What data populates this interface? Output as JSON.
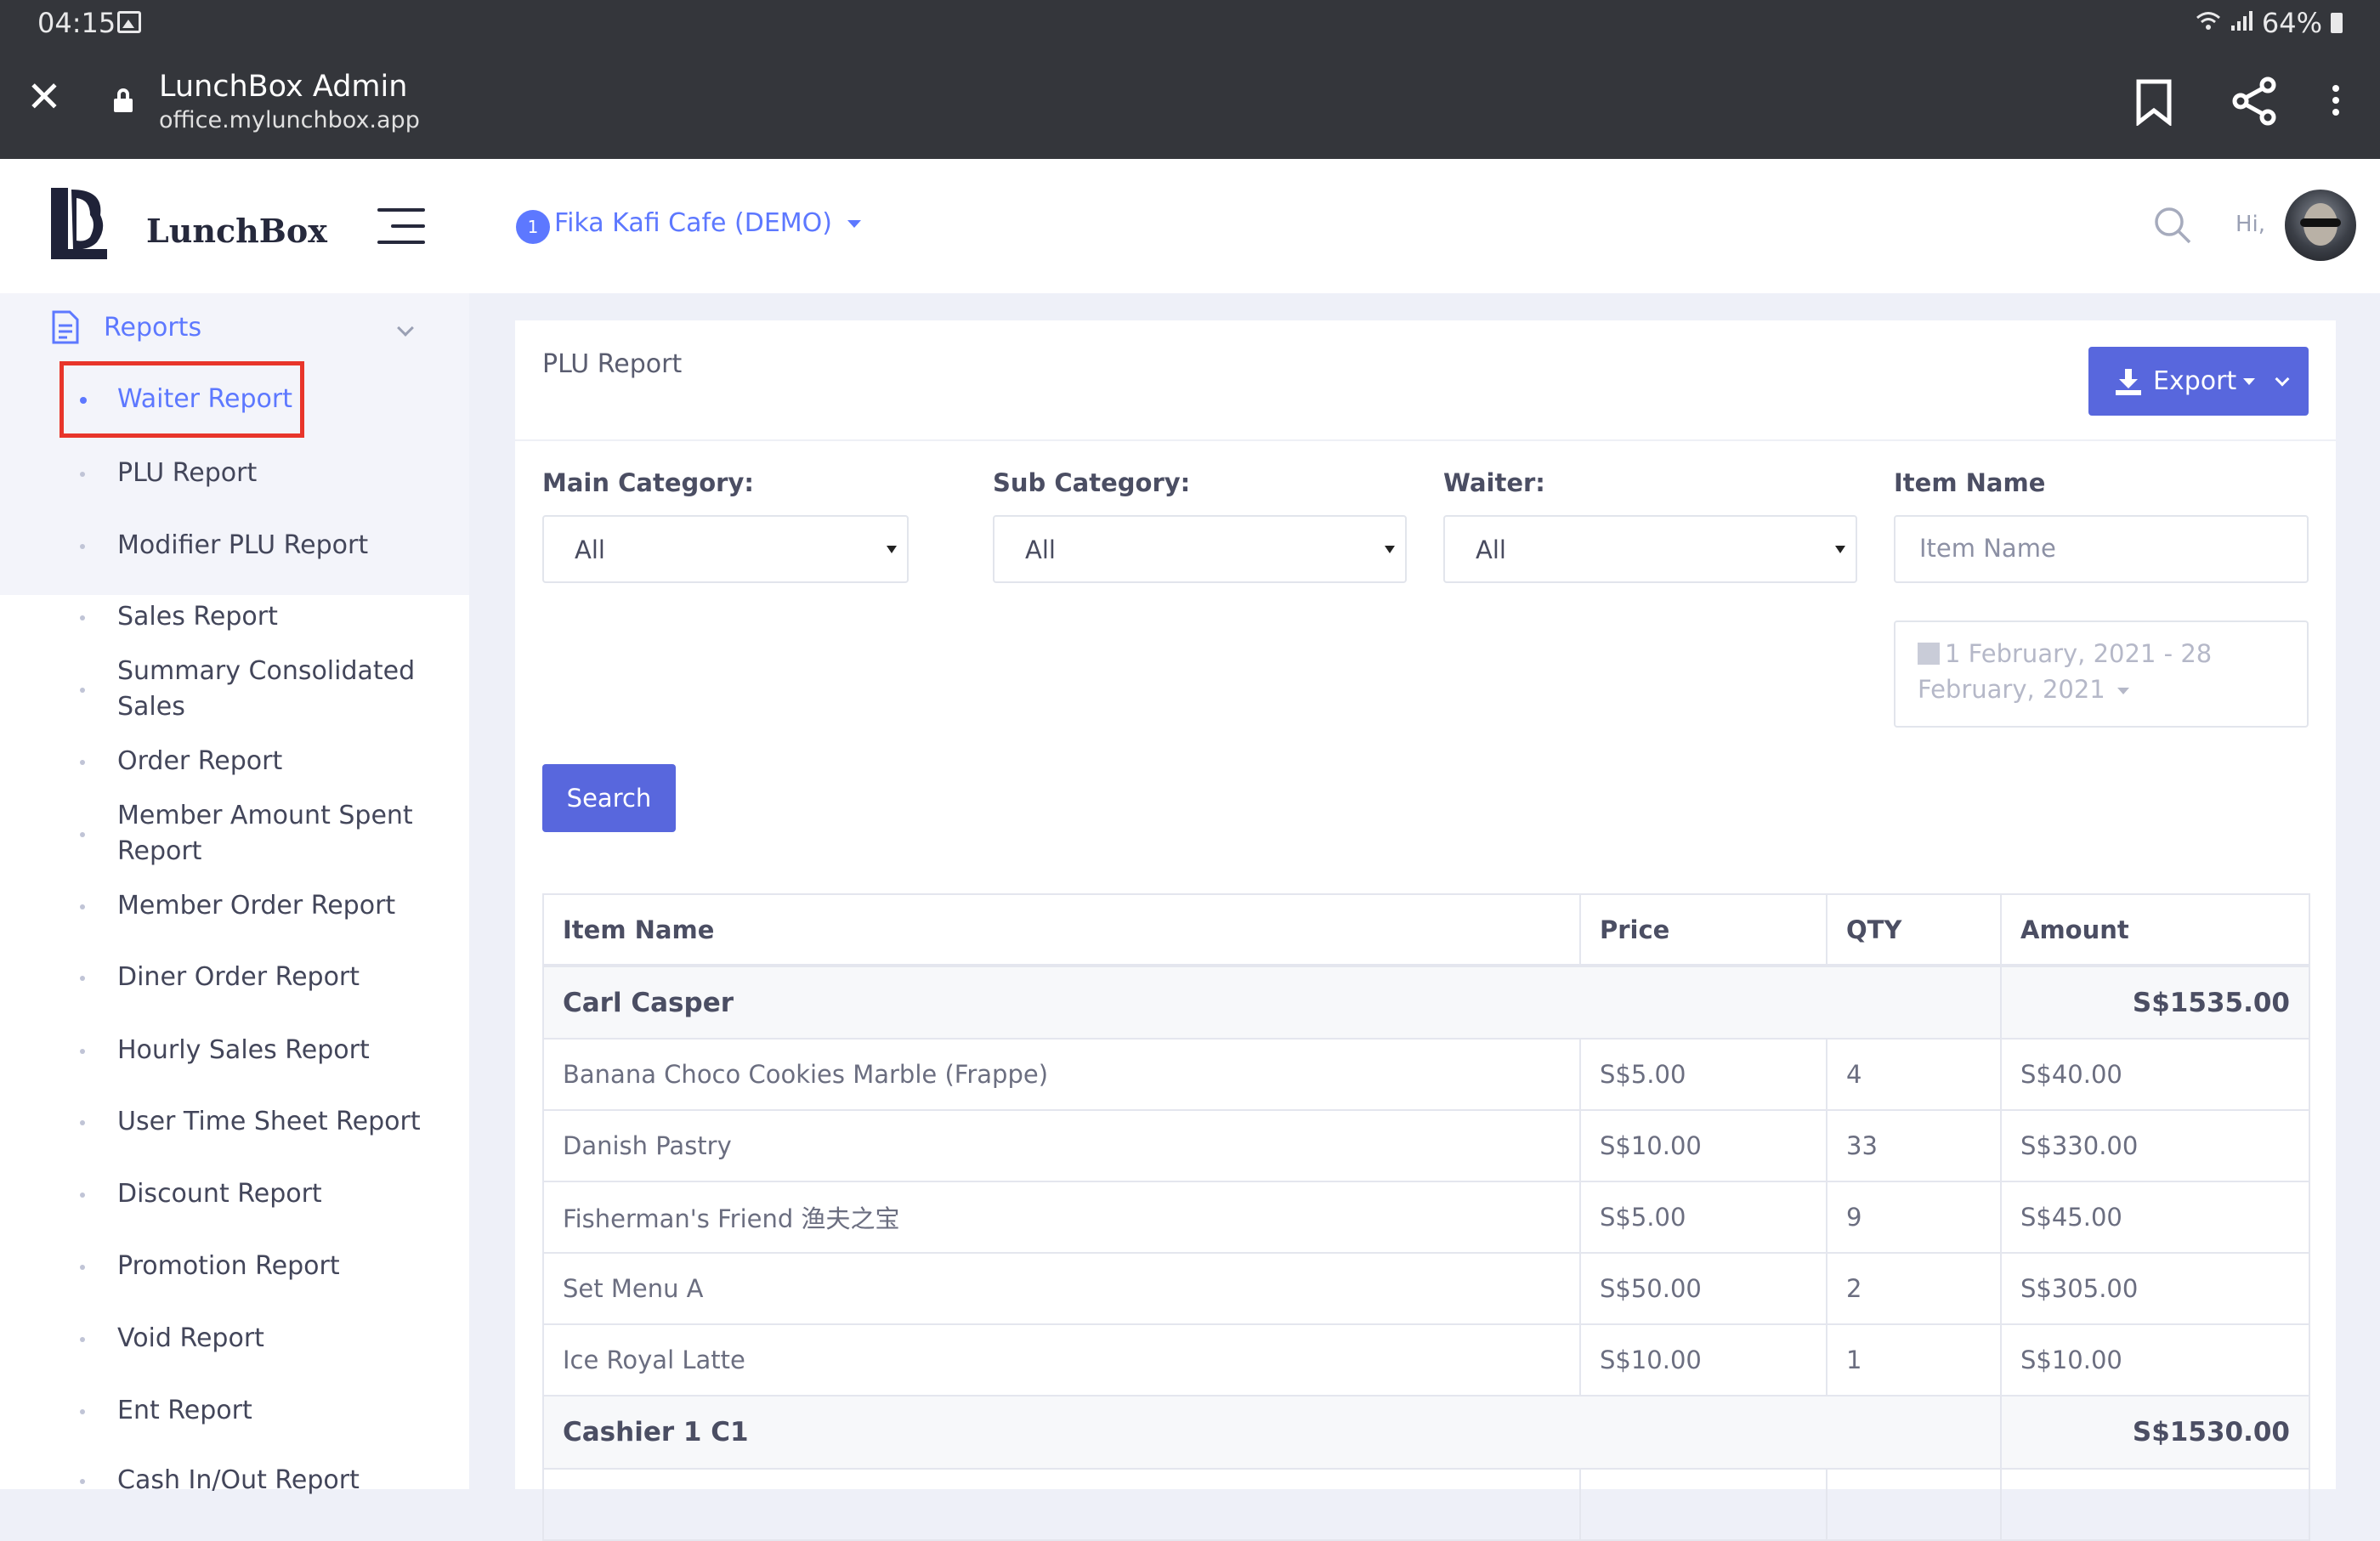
{
  "status_bar": {
    "time": "04:15",
    "battery": "64%"
  },
  "browser": {
    "title": "LunchBox Admin",
    "url": "office.mylunchbox.app"
  },
  "sidebar": {
    "brand": "LunchBox",
    "section": "Reports",
    "items": [
      {
        "label": "Waiter Report",
        "active": true
      },
      {
        "label": "PLU Report"
      },
      {
        "label": "Modifier PLU Report"
      },
      {
        "label": "Sales Report"
      },
      {
        "label": "Summary Consolidated Sales"
      },
      {
        "label": "Order Report"
      },
      {
        "label": "Member Amount Spent Report"
      },
      {
        "label": "Member Order Report"
      },
      {
        "label": "Diner Order Report"
      },
      {
        "label": "Hourly Sales Report"
      },
      {
        "label": "User Time Sheet Report"
      },
      {
        "label": "Discount Report"
      },
      {
        "label": "Promotion Report"
      },
      {
        "label": "Void Report"
      },
      {
        "label": "Ent Report"
      },
      {
        "label": "Cash In/Out Report"
      }
    ]
  },
  "topbar": {
    "store_badge": "1",
    "store_name": "Fika Kafi Cafe (DEMO)",
    "greeting": "Hi,"
  },
  "report": {
    "title": "PLU Report",
    "export_label": "Export",
    "filters": {
      "main_category": {
        "label": "Main Category:",
        "value": "All"
      },
      "sub_category": {
        "label": "Sub Category:",
        "value": "All"
      },
      "waiter": {
        "label": "Waiter:",
        "value": "All"
      },
      "item_name": {
        "label": "Item Name",
        "placeholder": "Item Name"
      },
      "date_range": "1 February, 2021 - 28 February, 2021"
    },
    "search_label": "Search",
    "table": {
      "headers": [
        "Item Name",
        "Price",
        "QTY",
        "Amount"
      ],
      "groups": [
        {
          "name": "Carl Casper",
          "total": "S$1535.00",
          "rows": [
            [
              "Banana Choco Cookies Marble (Frappe)",
              "S$5.00",
              "4",
              "S$40.00"
            ],
            [
              "Danish Pastry",
              "S$10.00",
              "33",
              "S$330.00"
            ],
            [
              "Fisherman's Friend 渔夫之宝",
              "S$5.00",
              "9",
              "S$45.00"
            ],
            [
              "Set Menu A",
              "S$50.00",
              "2",
              "S$305.00"
            ],
            [
              "Ice Royal Latte",
              "S$10.00",
              "1",
              "S$10.00"
            ]
          ]
        },
        {
          "name": "Cashier 1 C1",
          "total": "S$1530.00",
          "rows": []
        }
      ]
    }
  },
  "colors": {
    "accent": "#5d78ff",
    "button": "#5867dd",
    "highlight": "#e8352a",
    "chrome": "#34363b"
  }
}
